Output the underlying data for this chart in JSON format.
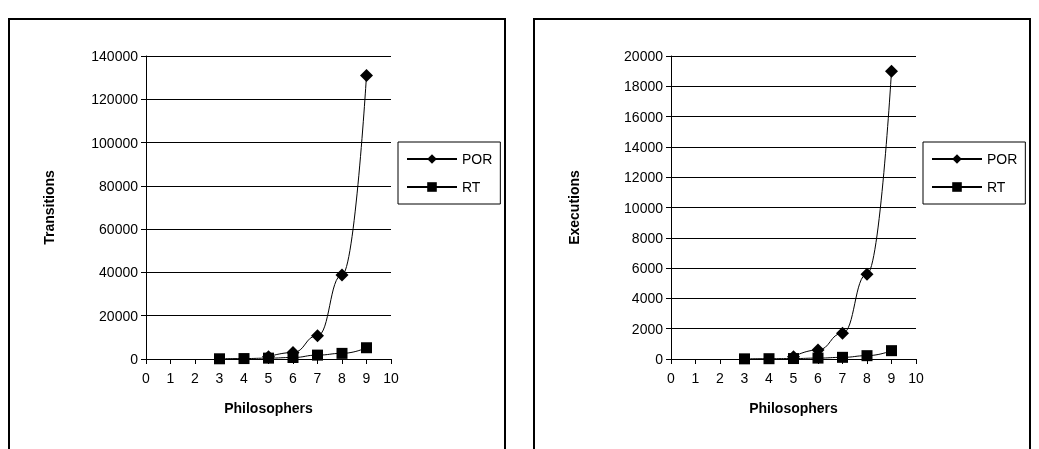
{
  "chart_data": [
    {
      "type": "line",
      "xlabel": "Philosophers",
      "ylabel": "Transitions",
      "x": [
        3,
        4,
        5,
        6,
        7,
        8,
        9
      ],
      "xlim": [
        0,
        10
      ],
      "xticks": [
        0,
        1,
        2,
        3,
        4,
        5,
        6,
        7,
        8,
        9,
        10
      ],
      "ylim": [
        0,
        140000
      ],
      "yticks": [
        0,
        20000,
        40000,
        60000,
        80000,
        100000,
        120000,
        140000
      ],
      "grid": "y",
      "legend": "right",
      "series": [
        {
          "name": "POR",
          "color": "#000000",
          "marker": "diamond",
          "values": [
            null,
            null,
            1000,
            3000,
            10800,
            38800,
            131000
          ]
        },
        {
          "name": "RT",
          "color": "#000000",
          "marker": "square",
          "values": [
            100,
            200,
            400,
            700,
            1800,
            2600,
            5200
          ]
        }
      ]
    },
    {
      "type": "line",
      "xlabel": "Philosophers",
      "ylabel": "Executions",
      "x": [
        3,
        4,
        5,
        6,
        7,
        8,
        9
      ],
      "xlim": [
        0,
        10
      ],
      "xticks": [
        0,
        1,
        2,
        3,
        4,
        5,
        6,
        7,
        8,
        9,
        10
      ],
      "ylim": [
        0,
        20000
      ],
      "yticks": [
        0,
        2000,
        4000,
        6000,
        8000,
        10000,
        12000,
        14000,
        16000,
        18000,
        20000
      ],
      "grid": "y",
      "legend": "right",
      "series": [
        {
          "name": "POR",
          "color": "#000000",
          "marker": "diamond",
          "values": [
            null,
            null,
            150,
            600,
            1700,
            5600,
            19000
          ]
        },
        {
          "name": "RT",
          "color": "#000000",
          "marker": "square",
          "values": [
            10,
            20,
            30,
            60,
            110,
            220,
            550
          ]
        }
      ]
    }
  ]
}
